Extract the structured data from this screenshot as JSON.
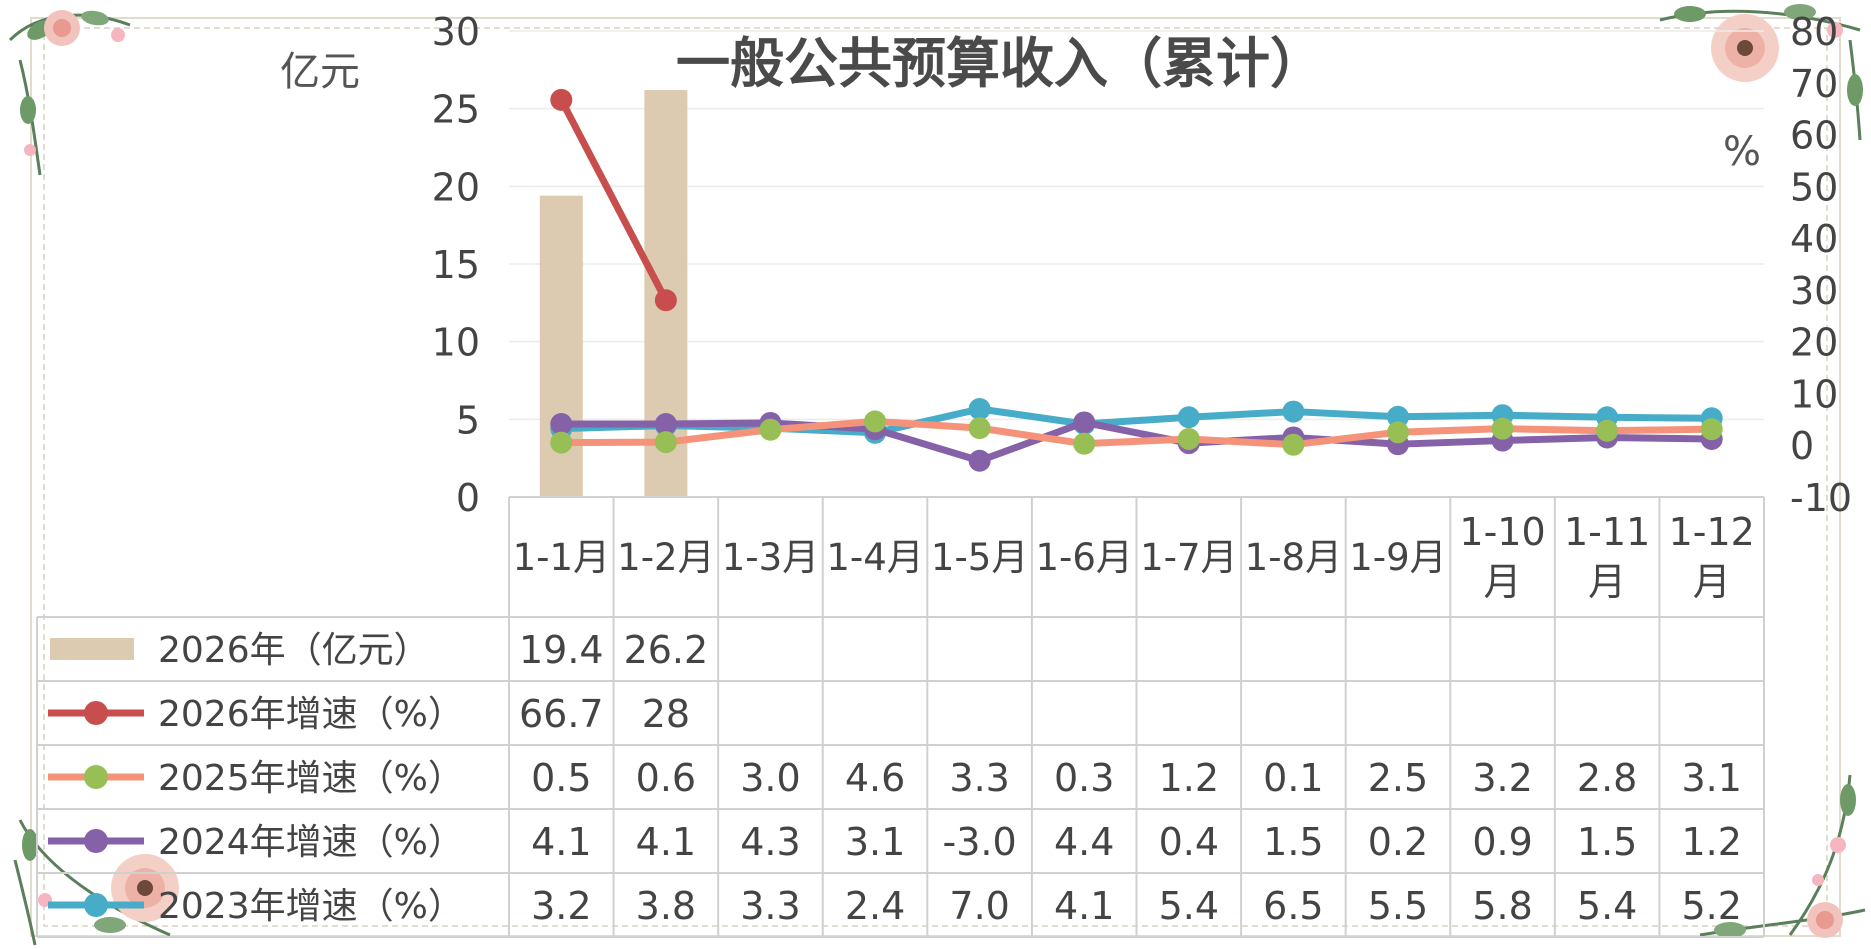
{
  "chart_data": {
    "type": "bar",
    "title": "一般公共预算收入（累计）",
    "ylabel": "亿元",
    "y2label": "%",
    "ylim": [
      0,
      30
    ],
    "y_ticks": [
      "0",
      "5",
      "10",
      "15",
      "20",
      "25",
      "30"
    ],
    "y2lim": [
      -10,
      80
    ],
    "y2_ticks": [
      "-10",
      "0",
      "10",
      "20",
      "30",
      "40",
      "50",
      "60",
      "70",
      "80"
    ],
    "grid": true,
    "legend": "data-table",
    "categories": [
      "1-1月",
      "1-2月",
      "1-3月",
      "1-4月",
      "1-5月",
      "1-6月",
      "1-7月",
      "1-8月",
      "1-9月",
      "1-10月",
      "1-11月",
      "1-12月"
    ],
    "series": [
      {
        "name": "2026年（亿元）",
        "type": "bar",
        "axis": "left",
        "color": "#dccbb0",
        "values": [
          19.4,
          26.2,
          null,
          null,
          null,
          null,
          null,
          null,
          null,
          null,
          null,
          null
        ],
        "labels": [
          "19.4",
          "26.2",
          "",
          "",
          "",
          "",
          "",
          "",
          "",
          "",
          "",
          ""
        ]
      },
      {
        "name": "2026年增速（%）",
        "type": "line",
        "axis": "right",
        "color": "#c84d4d",
        "values": [
          66.7,
          28,
          null,
          null,
          null,
          null,
          null,
          null,
          null,
          null,
          null,
          null
        ],
        "labels": [
          "66.7",
          "28",
          "",
          "",
          "",
          "",
          "",
          "",
          "",
          "",
          "",
          ""
        ]
      },
      {
        "name": "2025年增速（%）",
        "type": "line",
        "axis": "right",
        "color": "#f4937a",
        "marker_color": "#97bf55",
        "values": [
          0.5,
          0.6,
          3.0,
          4.6,
          3.3,
          0.3,
          1.2,
          0.1,
          2.5,
          3.2,
          2.8,
          3.1
        ],
        "labels": [
          "0.5",
          "0.6",
          "3.0",
          "4.6",
          "3.3",
          "0.3",
          "1.2",
          "0.1",
          "2.5",
          "3.2",
          "2.8",
          "3.1"
        ]
      },
      {
        "name": "2024年增速（%）",
        "type": "line",
        "axis": "right",
        "color": "#8561a8",
        "values": [
          4.1,
          4.1,
          4.3,
          3.1,
          -3.0,
          4.4,
          0.4,
          1.5,
          0.2,
          0.9,
          1.5,
          1.2
        ],
        "labels": [
          "4.1",
          "4.1",
          "4.3",
          "3.1",
          "-3.0",
          "4.4",
          "0.4",
          "1.5",
          "0.2",
          "0.9",
          "1.5",
          "1.2"
        ]
      },
      {
        "name": "2023年增速（%）",
        "type": "line",
        "axis": "right",
        "color": "#46acc8",
        "values": [
          3.2,
          3.8,
          3.3,
          2.4,
          7.0,
          4.1,
          5.4,
          6.5,
          5.5,
          5.8,
          5.4,
          5.2
        ],
        "labels": [
          "3.2",
          "3.8",
          "3.3",
          "2.4",
          "7.0",
          "4.1",
          "5.4",
          "6.5",
          "5.5",
          "5.8",
          "5.4",
          "5.2"
        ]
      }
    ]
  }
}
